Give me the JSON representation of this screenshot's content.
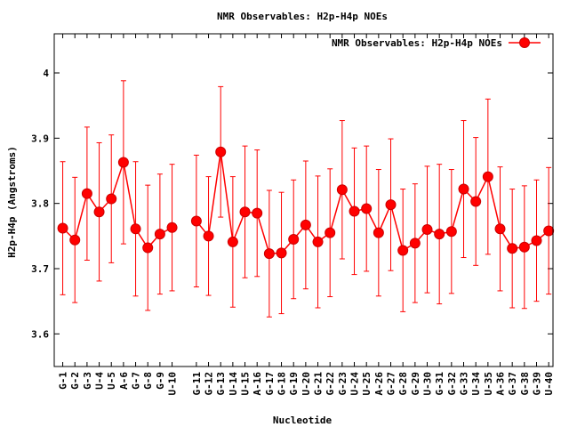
{
  "chart_data": {
    "type": "line",
    "title": "NMR Observables: H2p-H4p NOEs",
    "xlabel": "Nucleotide",
    "ylabel": "H2p-H4p (Angstroms)",
    "ylim": [
      3.55,
      4.06
    ],
    "yticks": [
      3.6,
      3.7,
      3.8,
      3.9,
      4
    ],
    "grid": false,
    "legend_position": "top-right",
    "series": [
      {
        "name": "NMR Observables: H2p-H4p NOEs",
        "color": "#ff0000",
        "points": [
          {
            "pos": 1,
            "label": "G-1",
            "y": 3.762,
            "err": 0.102
          },
          {
            "pos": 2,
            "label": "G-2",
            "y": 3.744,
            "err": 0.096
          },
          {
            "pos": 3,
            "label": "G-3",
            "y": 3.815,
            "err": 0.102
          },
          {
            "pos": 4,
            "label": "U-4",
            "y": 3.787,
            "err": 0.106
          },
          {
            "pos": 5,
            "label": "U-5",
            "y": 3.807,
            "err": 0.098
          },
          {
            "pos": 6,
            "label": "A-6",
            "y": 3.863,
            "err": 0.125
          },
          {
            "pos": 7,
            "label": "G-7",
            "y": 3.761,
            "err": 0.103
          },
          {
            "pos": 8,
            "label": "G-8",
            "y": 3.732,
            "err": 0.096
          },
          {
            "pos": 9,
            "label": "G-9",
            "y": 3.753,
            "err": 0.092
          },
          {
            "pos": 10,
            "label": "U-10",
            "y": 3.763,
            "err": 0.097
          },
          {
            "pos": 12,
            "label": "G-11",
            "y": 3.773,
            "err": 0.101
          },
          {
            "pos": 13,
            "label": "G-12",
            "y": 3.75,
            "err": 0.091
          },
          {
            "pos": 14,
            "label": "G-13",
            "y": 3.879,
            "err": 0.1
          },
          {
            "pos": 15,
            "label": "U-14",
            "y": 3.741,
            "err": 0.1
          },
          {
            "pos": 16,
            "label": "U-15",
            "y": 3.787,
            "err": 0.101
          },
          {
            "pos": 17,
            "label": "A-16",
            "y": 3.785,
            "err": 0.097
          },
          {
            "pos": 18,
            "label": "G-17",
            "y": 3.723,
            "err": 0.097
          },
          {
            "pos": 19,
            "label": "G-18",
            "y": 3.724,
            "err": 0.093
          },
          {
            "pos": 20,
            "label": "G-19",
            "y": 3.745,
            "err": 0.091
          },
          {
            "pos": 21,
            "label": "U-20",
            "y": 3.767,
            "err": 0.098
          },
          {
            "pos": 22,
            "label": "G-21",
            "y": 3.741,
            "err": 0.101
          },
          {
            "pos": 23,
            "label": "G-22",
            "y": 3.755,
            "err": 0.098
          },
          {
            "pos": 24,
            "label": "G-23",
            "y": 3.821,
            "err": 0.106
          },
          {
            "pos": 25,
            "label": "U-24",
            "y": 3.788,
            "err": 0.097
          },
          {
            "pos": 26,
            "label": "U-25",
            "y": 3.792,
            "err": 0.096
          },
          {
            "pos": 27,
            "label": "A-26",
            "y": 3.755,
            "err": 0.097
          },
          {
            "pos": 28,
            "label": "G-27",
            "y": 3.798,
            "err": 0.101
          },
          {
            "pos": 29,
            "label": "G-28",
            "y": 3.728,
            "err": 0.094
          },
          {
            "pos": 30,
            "label": "G-29",
            "y": 3.739,
            "err": 0.091
          },
          {
            "pos": 31,
            "label": "U-30",
            "y": 3.76,
            "err": 0.097
          },
          {
            "pos": 32,
            "label": "G-31",
            "y": 3.753,
            "err": 0.107
          },
          {
            "pos": 33,
            "label": "G-32",
            "y": 3.757,
            "err": 0.095
          },
          {
            "pos": 34,
            "label": "G-33",
            "y": 3.822,
            "err": 0.105
          },
          {
            "pos": 35,
            "label": "U-34",
            "y": 3.803,
            "err": 0.098
          },
          {
            "pos": 36,
            "label": "U-35",
            "y": 3.841,
            "err": 0.119
          },
          {
            "pos": 37,
            "label": "A-36",
            "y": 3.761,
            "err": 0.095
          },
          {
            "pos": 38,
            "label": "G-37",
            "y": 3.731,
            "err": 0.091
          },
          {
            "pos": 39,
            "label": "G-38",
            "y": 3.733,
            "err": 0.094
          },
          {
            "pos": 40,
            "label": "G-39",
            "y": 3.743,
            "err": 0.093
          },
          {
            "pos": 41,
            "label": "U-40",
            "y": 3.758,
            "err": 0.097
          }
        ]
      }
    ]
  }
}
